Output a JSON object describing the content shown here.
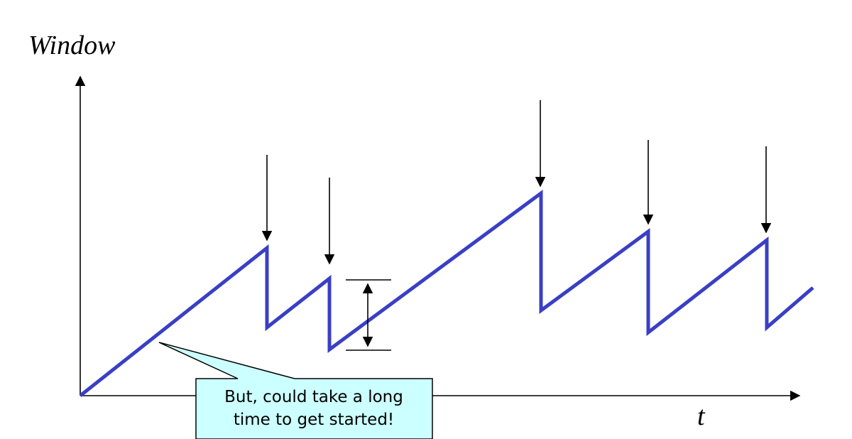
{
  "axes": {
    "y_label": "Window",
    "x_label": "t"
  },
  "callout": {
    "lines": [
      "But, could take a long",
      "time to get started!"
    ],
    "fill": "#ccffff"
  },
  "colors": {
    "window_line": "#3a3fc4",
    "axis": "#000000",
    "arrow": "#000000"
  },
  "window_trace": {
    "description_points": [
      {
        "t": 0,
        "w": 0
      },
      {
        "t": 1,
        "w": 4.4
      },
      {
        "t": 1,
        "w": 2.2
      },
      {
        "t": 1.33,
        "w": 3.6
      },
      {
        "t": 1.33,
        "w": 1.4
      },
      {
        "t": 2.93,
        "w": 6.1
      },
      {
        "t": 2.93,
        "w": 2.7
      },
      {
        "t": 3.5,
        "w": 5.0
      },
      {
        "t": 3.5,
        "w": 2.0
      },
      {
        "t": 4.13,
        "w": 4.6
      },
      {
        "t": 4.13,
        "w": 2.1
      },
      {
        "t": 4.38,
        "w": 3.4
      }
    ]
  },
  "loss_arrows": [
    {
      "t": 1
    },
    {
      "t": 1.33
    },
    {
      "t": 2.93
    },
    {
      "t": 3.5
    },
    {
      "t": 4.13
    }
  ],
  "range_marker": {
    "t": 1.35,
    "w_low": 1.4,
    "w_high": 3.6
  }
}
